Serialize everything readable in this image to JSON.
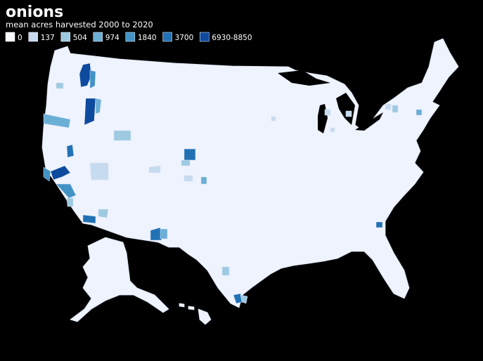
{
  "title": "onions",
  "subtitle": "mean acres harvested 2000 to 2020",
  "legend": [
    {
      "label": "0",
      "color": "#f7fbff"
    },
    {
      "label": "137",
      "color": "#c6dbef"
    },
    {
      "label": "504",
      "color": "#9ecae1"
    },
    {
      "label": "974",
      "color": "#6baed6"
    },
    {
      "label": "1840",
      "color": "#4292c6"
    },
    {
      "label": "3700",
      "color": "#2171b5"
    },
    {
      "label": "6930-8850",
      "color": "#0d4a9e"
    }
  ]
}
